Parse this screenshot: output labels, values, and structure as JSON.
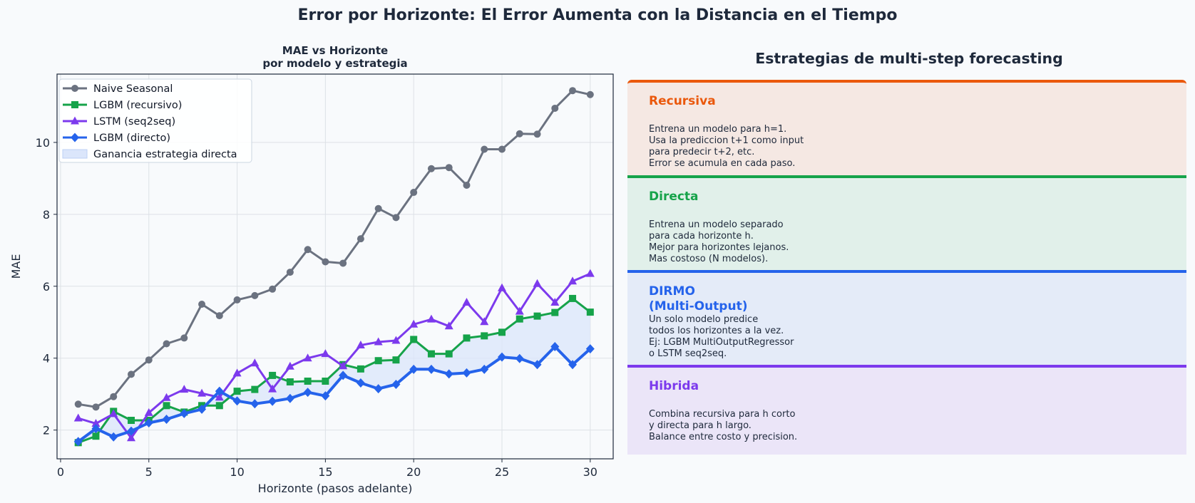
{
  "suptitle": "Error por Horizonte: El Error Aumenta con la Distancia en el Tiempo",
  "chart_data": {
    "type": "line",
    "title": "MAE vs Horizonte\npor modelo y estrategia",
    "xlabel": "Horizonte (pasos adelante)",
    "ylabel": "MAE",
    "xlim": [
      -0.2,
      31.3
    ],
    "ylim": [
      1.2,
      11.9
    ],
    "x_ticks": [
      0,
      5,
      10,
      15,
      20,
      25,
      30
    ],
    "y_ticks": [
      2,
      4,
      6,
      8,
      10
    ],
    "grid": true,
    "legend_position": "upper-left",
    "x": [
      1,
      2,
      3,
      4,
      5,
      6,
      7,
      8,
      9,
      10,
      11,
      12,
      13,
      14,
      15,
      16,
      17,
      18,
      19,
      20,
      21,
      22,
      23,
      24,
      25,
      26,
      27,
      28,
      29,
      30
    ],
    "series": [
      {
        "name": "Naive Seasonal",
        "color": "#6b7280",
        "marker": "circle",
        "values": [
          2.72,
          2.64,
          2.93,
          3.55,
          3.95,
          4.4,
          4.56,
          5.5,
          5.18,
          5.62,
          5.74,
          5.92,
          6.39,
          7.02,
          6.68,
          6.64,
          7.32,
          8.16,
          7.91,
          8.61,
          9.27,
          9.3,
          8.81,
          9.81,
          9.81,
          10.24,
          10.23,
          10.95,
          11.44,
          11.33
        ]
      },
      {
        "name": "LGBM (recursivo)",
        "color": "#16a34a",
        "marker": "square",
        "values": [
          1.65,
          1.83,
          2.52,
          2.27,
          2.27,
          2.68,
          2.5,
          2.68,
          2.68,
          3.08,
          3.13,
          3.52,
          3.34,
          3.36,
          3.36,
          3.82,
          3.7,
          3.93,
          3.95,
          4.52,
          4.12,
          4.12,
          4.56,
          4.62,
          4.72,
          5.09,
          5.17,
          5.27,
          5.66,
          5.28
        ]
      },
      {
        "name": "LSTM (seq2seq)",
        "color": "#7c3aed",
        "marker": "triangle",
        "values": [
          2.33,
          2.18,
          2.45,
          1.78,
          2.48,
          2.9,
          3.13,
          3.02,
          2.91,
          3.58,
          3.86,
          3.14,
          3.77,
          4.0,
          4.12,
          3.78,
          4.36,
          4.45,
          4.49,
          4.94,
          5.08,
          4.89,
          5.55,
          5.01,
          5.95,
          5.3,
          6.07,
          5.55,
          6.14,
          6.35
        ]
      },
      {
        "name": "LGBM (directo)",
        "color": "#2563eb",
        "marker": "diamond",
        "values": [
          1.68,
          2.04,
          1.81,
          1.97,
          2.2,
          2.3,
          2.46,
          2.58,
          3.08,
          2.81,
          2.73,
          2.8,
          2.88,
          3.05,
          2.95,
          3.52,
          3.31,
          3.15,
          3.27,
          3.69,
          3.69,
          3.56,
          3.59,
          3.69,
          4.03,
          3.99,
          3.82,
          4.32,
          3.82,
          4.26
        ]
      }
    ],
    "fill_between": {
      "name": "Ganancia estrategia directa",
      "upper": "LGBM (recursivo)",
      "lower": "LGBM (directo)",
      "color": "#dbe6fb"
    }
  },
  "panel": {
    "title": "Estrategias de multi-step forecasting",
    "strategies": [
      {
        "title": "Recursiva",
        "description": "Entrena un modelo para h=1.\nUsa la prediccion t+1 como input\npara predecir t+2, etc.\nError se acumula en cada paso.",
        "accent": "#ea580c",
        "background": "#f5e8e3"
      },
      {
        "title": "Directa",
        "description": "Entrena un modelo separado\npara cada horizonte h.\nMejor para horizontes lejanos.\nMas costoso (N modelos).",
        "accent": "#16a34a",
        "background": "#e1f0ea"
      },
      {
        "title": "DIRMO\n(Multi-Output)",
        "description": "Un solo modelo predice\ntodos los horizontes a la vez.\nEj: LGBM MultiOutputRegressor\no LSTM seq2seq.",
        "accent": "#2563eb",
        "background": "#e4ebf8"
      },
      {
        "title": "Hibrida",
        "description": "Combina recursiva para h corto\ny directa para h largo.\nBalance entre costo y precision.",
        "accent": "#7c3aed",
        "background": "#ebe5f8"
      }
    ]
  }
}
